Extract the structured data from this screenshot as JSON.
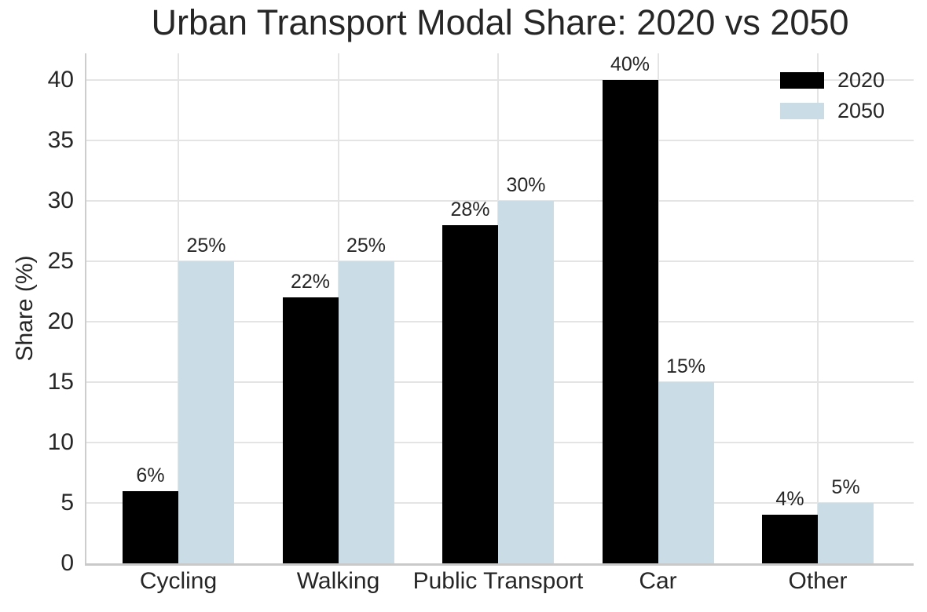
{
  "chart_data": {
    "type": "bar",
    "title": "Urban Transport Modal Share: 2020 vs 2050",
    "xlabel": "",
    "ylabel": "Share (%)",
    "categories": [
      "Cycling",
      "Walking",
      "Public Transport",
      "Car",
      "Other"
    ],
    "series": [
      {
        "name": "2020",
        "color": "#000000",
        "values": [
          6,
          22,
          28,
          40,
          4
        ],
        "labels": [
          "6%",
          "22%",
          "28%",
          "40%",
          "4%"
        ]
      },
      {
        "name": "2050",
        "color": "#cadce6",
        "values": [
          25,
          25,
          30,
          15,
          5
        ],
        "labels": [
          "25%",
          "25%",
          "30%",
          "15%",
          "5%"
        ]
      }
    ],
    "yticks": [
      0,
      5,
      10,
      15,
      20,
      25,
      30,
      35,
      40
    ],
    "ylim": [
      0,
      42.2
    ],
    "grid": true,
    "legend_position": "upper right"
  },
  "colors": {
    "text": "#262626",
    "grid": "#e4e4e4",
    "spine": "#cccccc",
    "background": "#ffffff"
  }
}
